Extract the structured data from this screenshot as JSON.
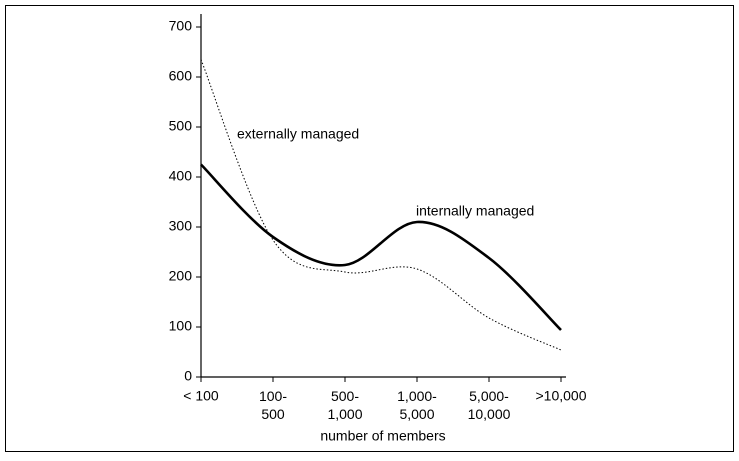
{
  "chart_data": {
    "type": "line",
    "x_label": "number of members",
    "categories": [
      "< 100",
      "100-\n500",
      "500-\n1,000",
      "1,000-\n5,000",
      "5,000-\n10,000",
      ">10,000"
    ],
    "series": [
      {
        "name": "internally managed",
        "color": "#000000",
        "style": "solid",
        "values": [
          425,
          280,
          224,
          310,
          238,
          94
        ]
      },
      {
        "name": "externally managed",
        "color": "#000000",
        "style": "dotted",
        "values": [
          635,
          274,
          210,
          216,
          118,
          54
        ]
      }
    ],
    "ylim": [
      0,
      700
    ],
    "yticks": [
      0,
      100,
      200,
      300,
      400,
      500,
      600,
      700
    ],
    "grid": false
  }
}
